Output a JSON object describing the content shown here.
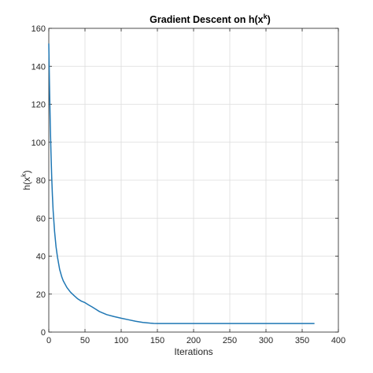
{
  "chart_data": {
    "type": "line",
    "title": {
      "main": "Gradient Descent on h(x",
      "sup": "k",
      "close": ")"
    },
    "xlabel": "Iterations",
    "ylabel": {
      "main": "h(x",
      "sup": "k",
      "close": ")"
    },
    "xlim": [
      0,
      400
    ],
    "ylim": [
      0,
      160
    ],
    "xticks": [
      0,
      50,
      100,
      150,
      200,
      250,
      300,
      350,
      400
    ],
    "yticks": [
      0,
      20,
      40,
      60,
      80,
      100,
      120,
      140,
      160
    ],
    "grid": true,
    "series": [
      {
        "color": "#1f77b4",
        "x": [
          0,
          1,
          2,
          3,
          4,
          5,
          6,
          8,
          10,
          12,
          15,
          18,
          20,
          25,
          30,
          35,
          40,
          45,
          50,
          55,
          60,
          65,
          70,
          80,
          90,
          100,
          110,
          120,
          130,
          140,
          145,
          150,
          200,
          250,
          300,
          350,
          367
        ],
        "y": [
          152,
          130,
          110,
          95,
          82,
          72,
          64,
          53,
          45,
          39.5,
          33,
          29,
          27,
          23.5,
          21,
          19.2,
          17.5,
          16.3,
          15.5,
          14.3,
          13.2,
          12,
          10.8,
          9.2,
          8.2,
          7.3,
          6.5,
          5.7,
          5.1,
          4.7,
          4.55,
          4.5,
          4.5,
          4.5,
          4.5,
          4.5,
          4.5
        ]
      }
    ]
  }
}
